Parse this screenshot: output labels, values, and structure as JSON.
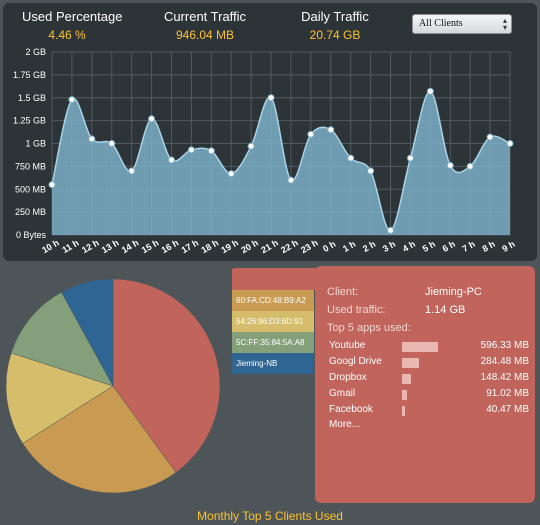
{
  "header": {
    "used_percentage": {
      "label": "Used Percentage",
      "value": "4.46 %"
    },
    "current_traffic": {
      "label": "Current Traffic",
      "value": "946.04 MB"
    },
    "daily_traffic": {
      "label": "Daily Traffic",
      "value": "20.74 GB"
    },
    "client_filter": {
      "selected": "All Clients"
    }
  },
  "chart_data": [
    {
      "type": "area",
      "title": "",
      "y_tick_labels": [
        "0 Bytes",
        "250 MB",
        "500 MB",
        "750 MB",
        "1 GB",
        "1.25 GB",
        "1.5 GB",
        "1.75 GB",
        "2 GB"
      ],
      "ylim": [
        0,
        2
      ],
      "y_unit": "GB",
      "x": [
        "10 h",
        "11 h",
        "12 h",
        "13 h",
        "14 h",
        "15 h",
        "16 h",
        "17 h",
        "18 h",
        "19 h",
        "20 h",
        "21 h",
        "22 h",
        "23 h",
        "0 h",
        "1 h",
        "2 h",
        "3 h",
        "4 h",
        "5 h",
        "6 h",
        "7 h",
        "8 h",
        "9 h"
      ],
      "values": [
        0.55,
        1.48,
        1.05,
        1.0,
        0.7,
        1.27,
        0.82,
        0.93,
        0.92,
        0.67,
        0.97,
        1.5,
        0.6,
        1.1,
        1.15,
        0.84,
        0.7,
        0.05,
        0.84,
        1.57,
        0.76,
        0.75,
        1.07,
        1.0
      ],
      "grid": true,
      "color": "#7dafc7"
    },
    {
      "type": "pie",
      "title": "Monthly Top 5 Clients Used",
      "categories": [
        "Jieming-PC",
        "60:FA:CD:48:B9:A2",
        "54:26:96:D3:6D:91",
        "5C:FF:35:84:5A:A8",
        "Jieming-NB"
      ],
      "values": [
        40,
        26,
        14,
        12,
        8
      ],
      "colors": [
        "#c0645c",
        "#c89a52",
        "#d5bd6b",
        "#84a07b",
        "#2f6592"
      ]
    }
  ],
  "details": {
    "client_label": "Client:",
    "client_value": "Jieming-PC",
    "traffic_label": "Used traffic:",
    "traffic_value": "1.14 GB",
    "apps_label": "Top 5 apps used:",
    "apps": [
      {
        "name": "Youtube",
        "value": "596.33 MB",
        "share": 1.0
      },
      {
        "name": "Googl Drive",
        "value": "284.48 MB",
        "share": 0.48
      },
      {
        "name": "Dropbox",
        "value": "148.42 MB",
        "share": 0.25
      },
      {
        "name": "Gmail",
        "value": "91.02 MB",
        "share": 0.15
      },
      {
        "name": "Facebook",
        "value": "40.47 MB",
        "share": 0.07
      }
    ],
    "more_label": "More..."
  },
  "footer_label": "Monthly Top 5 Clients Used"
}
